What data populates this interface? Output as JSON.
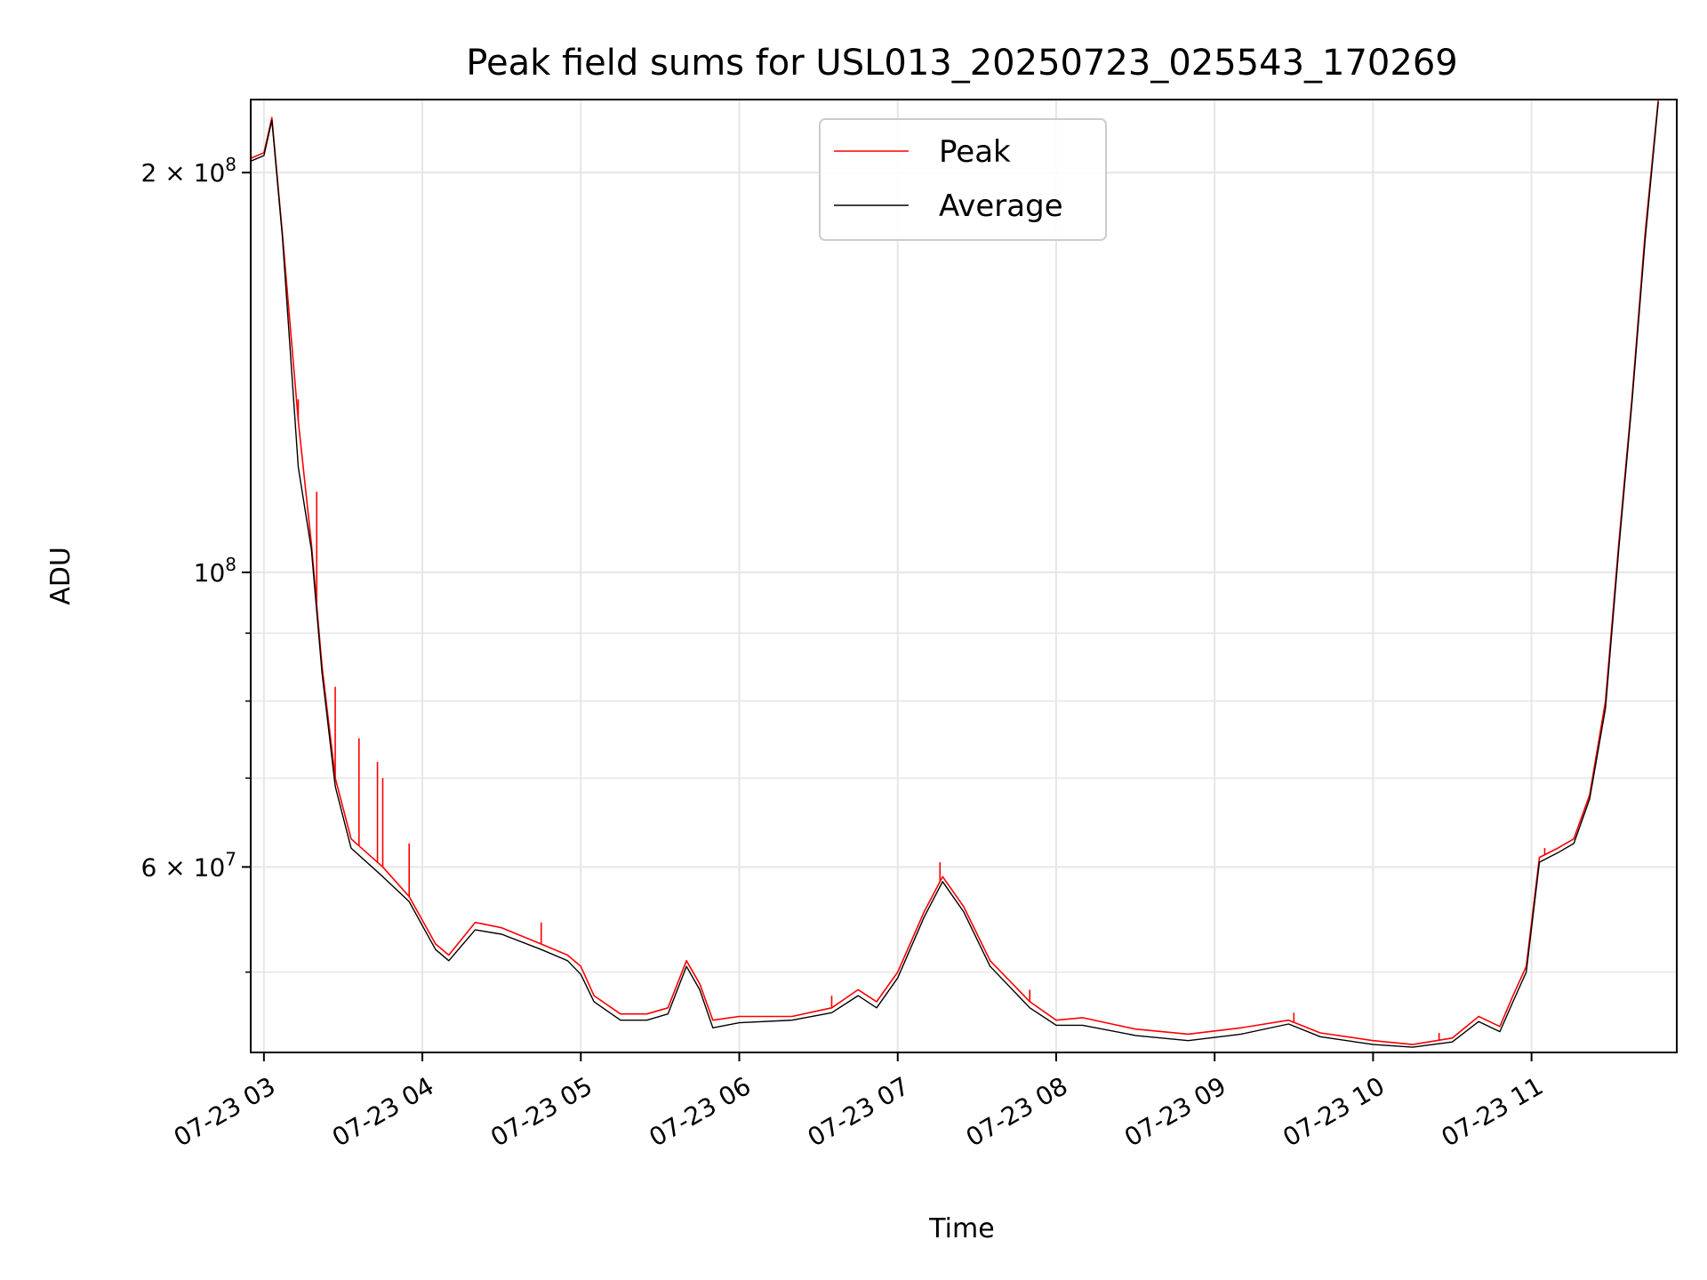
{
  "chart_data": {
    "type": "line",
    "title": "Peak field sums for USL013_20250723_025543_170269",
    "xlabel": "Time",
    "ylabel": "ADU",
    "x_range": [
      "2025-07-23T02:55",
      "2025-07-23T11:55"
    ],
    "y_scale": "log",
    "y_range": [
      43500000,
      227000000
    ],
    "grid": true,
    "legend_position": "upper-center",
    "x_ticks": [
      {
        "value": "2025-07-23T03:00",
        "label": "07-23 03"
      },
      {
        "value": "2025-07-23T04:00",
        "label": "07-23 04"
      },
      {
        "value": "2025-07-23T05:00",
        "label": "07-23 05"
      },
      {
        "value": "2025-07-23T06:00",
        "label": "07-23 06"
      },
      {
        "value": "2025-07-23T07:00",
        "label": "07-23 07"
      },
      {
        "value": "2025-07-23T08:00",
        "label": "07-23 08"
      },
      {
        "value": "2025-07-23T09:00",
        "label": "07-23 09"
      },
      {
        "value": "2025-07-23T10:00",
        "label": "07-23 10"
      },
      {
        "value": "2025-07-23T11:00",
        "label": "07-23 11"
      }
    ],
    "y_major_ticks": [
      {
        "value": 60000000,
        "base": "6 × 10",
        "exp": "7"
      },
      {
        "value": 100000000,
        "base": "10",
        "exp": "8"
      },
      {
        "value": 200000000,
        "base": "2 × 10",
        "exp": "8"
      }
    ],
    "y_minor_ticks": [
      50000000,
      70000000,
      80000000,
      90000000,
      300000000
    ],
    "series": [
      {
        "name": "Peak",
        "color": "#ff0000",
        "points": [
          [
            "2025-07-23T02:55",
            205000000
          ],
          [
            "2025-07-23T03:00",
            207000000
          ],
          [
            "2025-07-23T03:03",
            220000000
          ],
          [
            "2025-07-23T03:07",
            180000000
          ],
          [
            "2025-07-23T03:13",
            130000000
          ],
          [
            "2025-07-23T03:18",
            105000000
          ],
          [
            "2025-07-23T03:22",
            85000000
          ],
          [
            "2025-07-23T03:27",
            70000000
          ],
          [
            "2025-07-23T03:33",
            63000000
          ],
          [
            "2025-07-23T03:45",
            60000000
          ],
          [
            "2025-07-23T03:55",
            57000000
          ],
          [
            "2025-07-23T04:05",
            52500000
          ],
          [
            "2025-07-23T04:10",
            51500000
          ],
          [
            "2025-07-23T04:20",
            54500000
          ],
          [
            "2025-07-23T04:30",
            54000000
          ],
          [
            "2025-07-23T04:45",
            52500000
          ],
          [
            "2025-07-23T04:55",
            51500000
          ],
          [
            "2025-07-23T05:00",
            50500000
          ],
          [
            "2025-07-23T05:05",
            48000000
          ],
          [
            "2025-07-23T05:15",
            46500000
          ],
          [
            "2025-07-23T05:25",
            46500000
          ],
          [
            "2025-07-23T05:33",
            47000000
          ],
          [
            "2025-07-23T05:40",
            51000000
          ],
          [
            "2025-07-23T05:45",
            49000000
          ],
          [
            "2025-07-23T05:50",
            46000000
          ],
          [
            "2025-07-23T06:00",
            46300000
          ],
          [
            "2025-07-23T06:20",
            46300000
          ],
          [
            "2025-07-23T06:35",
            47000000
          ],
          [
            "2025-07-23T06:45",
            48500000
          ],
          [
            "2025-07-23T06:52",
            47500000
          ],
          [
            "2025-07-23T07:00",
            50000000
          ],
          [
            "2025-07-23T07:10",
            55500000
          ],
          [
            "2025-07-23T07:17",
            59000000
          ],
          [
            "2025-07-23T07:25",
            56000000
          ],
          [
            "2025-07-23T07:35",
            51000000
          ],
          [
            "2025-07-23T07:50",
            47500000
          ],
          [
            "2025-07-23T08:00",
            46000000
          ],
          [
            "2025-07-23T08:10",
            46200000
          ],
          [
            "2025-07-23T08:30",
            45300000
          ],
          [
            "2025-07-23T08:50",
            44900000
          ],
          [
            "2025-07-23T09:10",
            45400000
          ],
          [
            "2025-07-23T09:28",
            46000000
          ],
          [
            "2025-07-23T09:40",
            45000000
          ],
          [
            "2025-07-23T10:00",
            44400000
          ],
          [
            "2025-07-23T10:15",
            44100000
          ],
          [
            "2025-07-23T10:30",
            44600000
          ],
          [
            "2025-07-23T10:40",
            46300000
          ],
          [
            "2025-07-23T10:48",
            45500000
          ],
          [
            "2025-07-23T10:53",
            48000000
          ],
          [
            "2025-07-23T10:58",
            50500000
          ],
          [
            "2025-07-23T11:03",
            61000000
          ],
          [
            "2025-07-23T11:10",
            62000000
          ],
          [
            "2025-07-23T11:16",
            63000000
          ],
          [
            "2025-07-23T11:22",
            68000000
          ],
          [
            "2025-07-23T11:28",
            80000000
          ],
          [
            "2025-07-23T11:33",
            105000000
          ],
          [
            "2025-07-23T11:38",
            135000000
          ],
          [
            "2025-07-23T11:43",
            180000000
          ],
          [
            "2025-07-23T11:48",
            227000000
          ]
        ],
        "spikes": [
          [
            "2025-07-23T03:13",
            135000000
          ],
          [
            "2025-07-23T03:20",
            115000000
          ],
          [
            "2025-07-23T03:27",
            82000000
          ],
          [
            "2025-07-23T03:36",
            75000000
          ],
          [
            "2025-07-23T03:43",
            72000000
          ],
          [
            "2025-07-23T03:45",
            70000000
          ],
          [
            "2025-07-23T03:55",
            62500000
          ],
          [
            "2025-07-23T04:45",
            54500000
          ],
          [
            "2025-07-23T06:35",
            48000000
          ],
          [
            "2025-07-23T07:16",
            60500000
          ],
          [
            "2025-07-23T07:50",
            48500000
          ],
          [
            "2025-07-23T09:30",
            46600000
          ],
          [
            "2025-07-23T10:25",
            45000000
          ],
          [
            "2025-07-23T11:05",
            62000000
          ]
        ]
      },
      {
        "name": "Average",
        "color": "#000000",
        "points": [
          [
            "2025-07-23T02:55",
            204000000
          ],
          [
            "2025-07-23T03:00",
            206000000
          ],
          [
            "2025-07-23T03:03",
            219000000
          ],
          [
            "2025-07-23T03:07",
            179000000
          ],
          [
            "2025-07-23T03:13",
            120000000
          ],
          [
            "2025-07-23T03:18",
            104000000
          ],
          [
            "2025-07-23T03:22",
            84000000
          ],
          [
            "2025-07-23T03:27",
            69000000
          ],
          [
            "2025-07-23T03:33",
            62000000
          ],
          [
            "2025-07-23T03:45",
            59000000
          ],
          [
            "2025-07-23T03:55",
            56500000
          ],
          [
            "2025-07-23T04:05",
            52000000
          ],
          [
            "2025-07-23T04:10",
            51000000
          ],
          [
            "2025-07-23T04:20",
            53800000
          ],
          [
            "2025-07-23T04:30",
            53400000
          ],
          [
            "2025-07-23T04:45",
            52000000
          ],
          [
            "2025-07-23T04:55",
            51000000
          ],
          [
            "2025-07-23T05:00",
            49800000
          ],
          [
            "2025-07-23T05:05",
            47500000
          ],
          [
            "2025-07-23T05:15",
            46000000
          ],
          [
            "2025-07-23T05:25",
            46000000
          ],
          [
            "2025-07-23T05:33",
            46500000
          ],
          [
            "2025-07-23T05:40",
            50500000
          ],
          [
            "2025-07-23T05:45",
            48500000
          ],
          [
            "2025-07-23T05:50",
            45400000
          ],
          [
            "2025-07-23T06:00",
            45800000
          ],
          [
            "2025-07-23T06:20",
            46000000
          ],
          [
            "2025-07-23T06:35",
            46600000
          ],
          [
            "2025-07-23T06:45",
            48000000
          ],
          [
            "2025-07-23T06:52",
            47000000
          ],
          [
            "2025-07-23T07:00",
            49500000
          ],
          [
            "2025-07-23T07:10",
            55000000
          ],
          [
            "2025-07-23T07:17",
            58500000
          ],
          [
            "2025-07-23T07:25",
            55500000
          ],
          [
            "2025-07-23T07:35",
            50500000
          ],
          [
            "2025-07-23T07:50",
            47000000
          ],
          [
            "2025-07-23T08:00",
            45600000
          ],
          [
            "2025-07-23T08:10",
            45600000
          ],
          [
            "2025-07-23T08:30",
            44800000
          ],
          [
            "2025-07-23T08:50",
            44400000
          ],
          [
            "2025-07-23T09:10",
            44900000
          ],
          [
            "2025-07-23T09:28",
            45700000
          ],
          [
            "2025-07-23T09:40",
            44700000
          ],
          [
            "2025-07-23T10:00",
            44100000
          ],
          [
            "2025-07-23T10:15",
            43900000
          ],
          [
            "2025-07-23T10:30",
            44300000
          ],
          [
            "2025-07-23T10:40",
            45900000
          ],
          [
            "2025-07-23T10:48",
            45100000
          ],
          [
            "2025-07-23T10:53",
            47500000
          ],
          [
            "2025-07-23T10:58",
            50000000
          ],
          [
            "2025-07-23T11:03",
            60500000
          ],
          [
            "2025-07-23T11:10",
            61500000
          ],
          [
            "2025-07-23T11:16",
            62500000
          ],
          [
            "2025-07-23T11:22",
            67500000
          ],
          [
            "2025-07-23T11:28",
            79000000
          ],
          [
            "2025-07-23T11:33",
            104000000
          ],
          [
            "2025-07-23T11:38",
            134000000
          ],
          [
            "2025-07-23T11:43",
            178000000
          ],
          [
            "2025-07-23T11:48",
            226000000
          ]
        ]
      }
    ]
  }
}
